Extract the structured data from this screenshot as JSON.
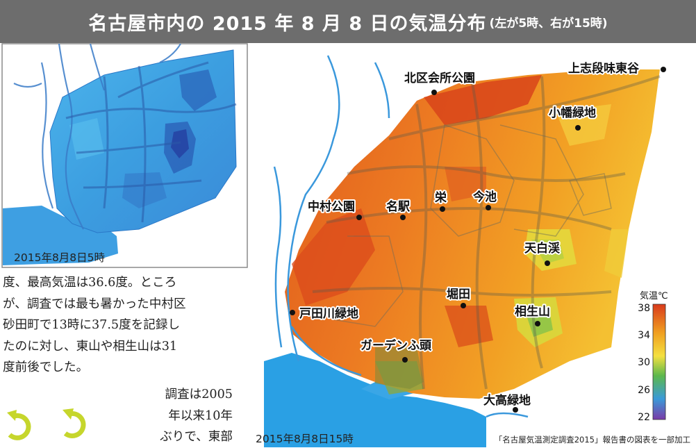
{
  "header": {
    "title": "名古屋市内の 2015 年 8 月 8 日の気温分布",
    "subtitle": "(左が5時、右が15時)"
  },
  "left_map": {
    "caption": "2015年8月8日5時"
  },
  "right_map": {
    "caption": "2015年8月8日15時",
    "places": [
      {
        "name": "北区会所公園"
      },
      {
        "name": "上志段味東谷"
      },
      {
        "name": "小幡緑地"
      },
      {
        "name": "中村公園"
      },
      {
        "name": "名駅"
      },
      {
        "name": "栄"
      },
      {
        "name": "今池"
      },
      {
        "name": "天白渓"
      },
      {
        "name": "堀田"
      },
      {
        "name": "戸田川緑地"
      },
      {
        "name": "相生山"
      },
      {
        "name": "ガーデンふ頭"
      },
      {
        "name": "大高緑地"
      }
    ]
  },
  "legend": {
    "title": "気温℃",
    "ticks": [
      "38",
      "34",
      "30",
      "26",
      "22"
    ],
    "colors": [
      "#d93a1c",
      "#f0a020",
      "#f4e040",
      "#5cb84c",
      "#3a9ad8",
      "#7a3aa8"
    ]
  },
  "article": {
    "lines": [
      "度、最高気温は36.6度。ところ",
      "が、調査では最も暑かった中村区",
      "砂田町で13時に37.5度を記録し",
      "たのに対し、東山や相生山は31",
      "度前後でした。"
    ],
    "lines2": [
      "調査は2005",
      "年以来10年",
      "ぶりで、東部"
    ]
  },
  "source_note": "「名古屋気温測定調査2015」報告書の図表を一部加工"
}
